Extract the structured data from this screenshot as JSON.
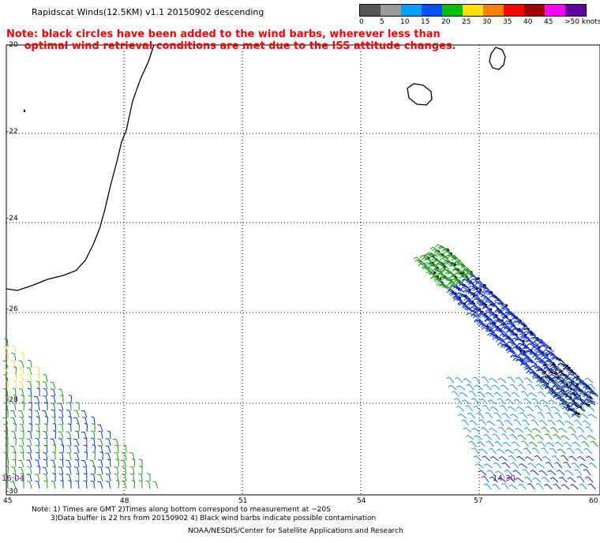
{
  "header": {
    "title": "Rapidscat Winds(12.5KM) v1.1 20150902 descending",
    "note_line1": "Note: black circles have been added to the wind barbs, wherever less than",
    "note_line2": "     optimal wind retrieval conditions are met due to the ISS attitude changes."
  },
  "legend": {
    "labels": [
      "0",
      "5",
      "10",
      "15",
      "20",
      "25",
      "30",
      "35",
      "40",
      "45",
      ">50 knots"
    ],
    "colors": [
      "#555555",
      "#9a9a9a",
      "#00a0ff",
      "#0050ff",
      "#00c000",
      "#ffe000",
      "#ff8000",
      "#ff0000",
      "#a00000",
      "#ff00ff",
      "#6000a0"
    ]
  },
  "axes": {
    "lat_labels": [
      "-20",
      "-22",
      "-24",
      "-26",
      "-28",
      "-30"
    ],
    "lon_labels": [
      "45",
      "48",
      "51",
      "54",
      "57",
      "60"
    ]
  },
  "times": {
    "left": "16:04",
    "right": "14:30"
  },
  "footer": {
    "line1": "Note: 1) Times are GMT 2)Times along bottom correspond to measurement at ~20S",
    "line2": "3)Data buffer is 22 hrs from 20150902 4) Black wind barbs indicate possible contamination",
    "line3": "NOAA/NESDIS/Center for Satellite Applications and Research"
  }
}
